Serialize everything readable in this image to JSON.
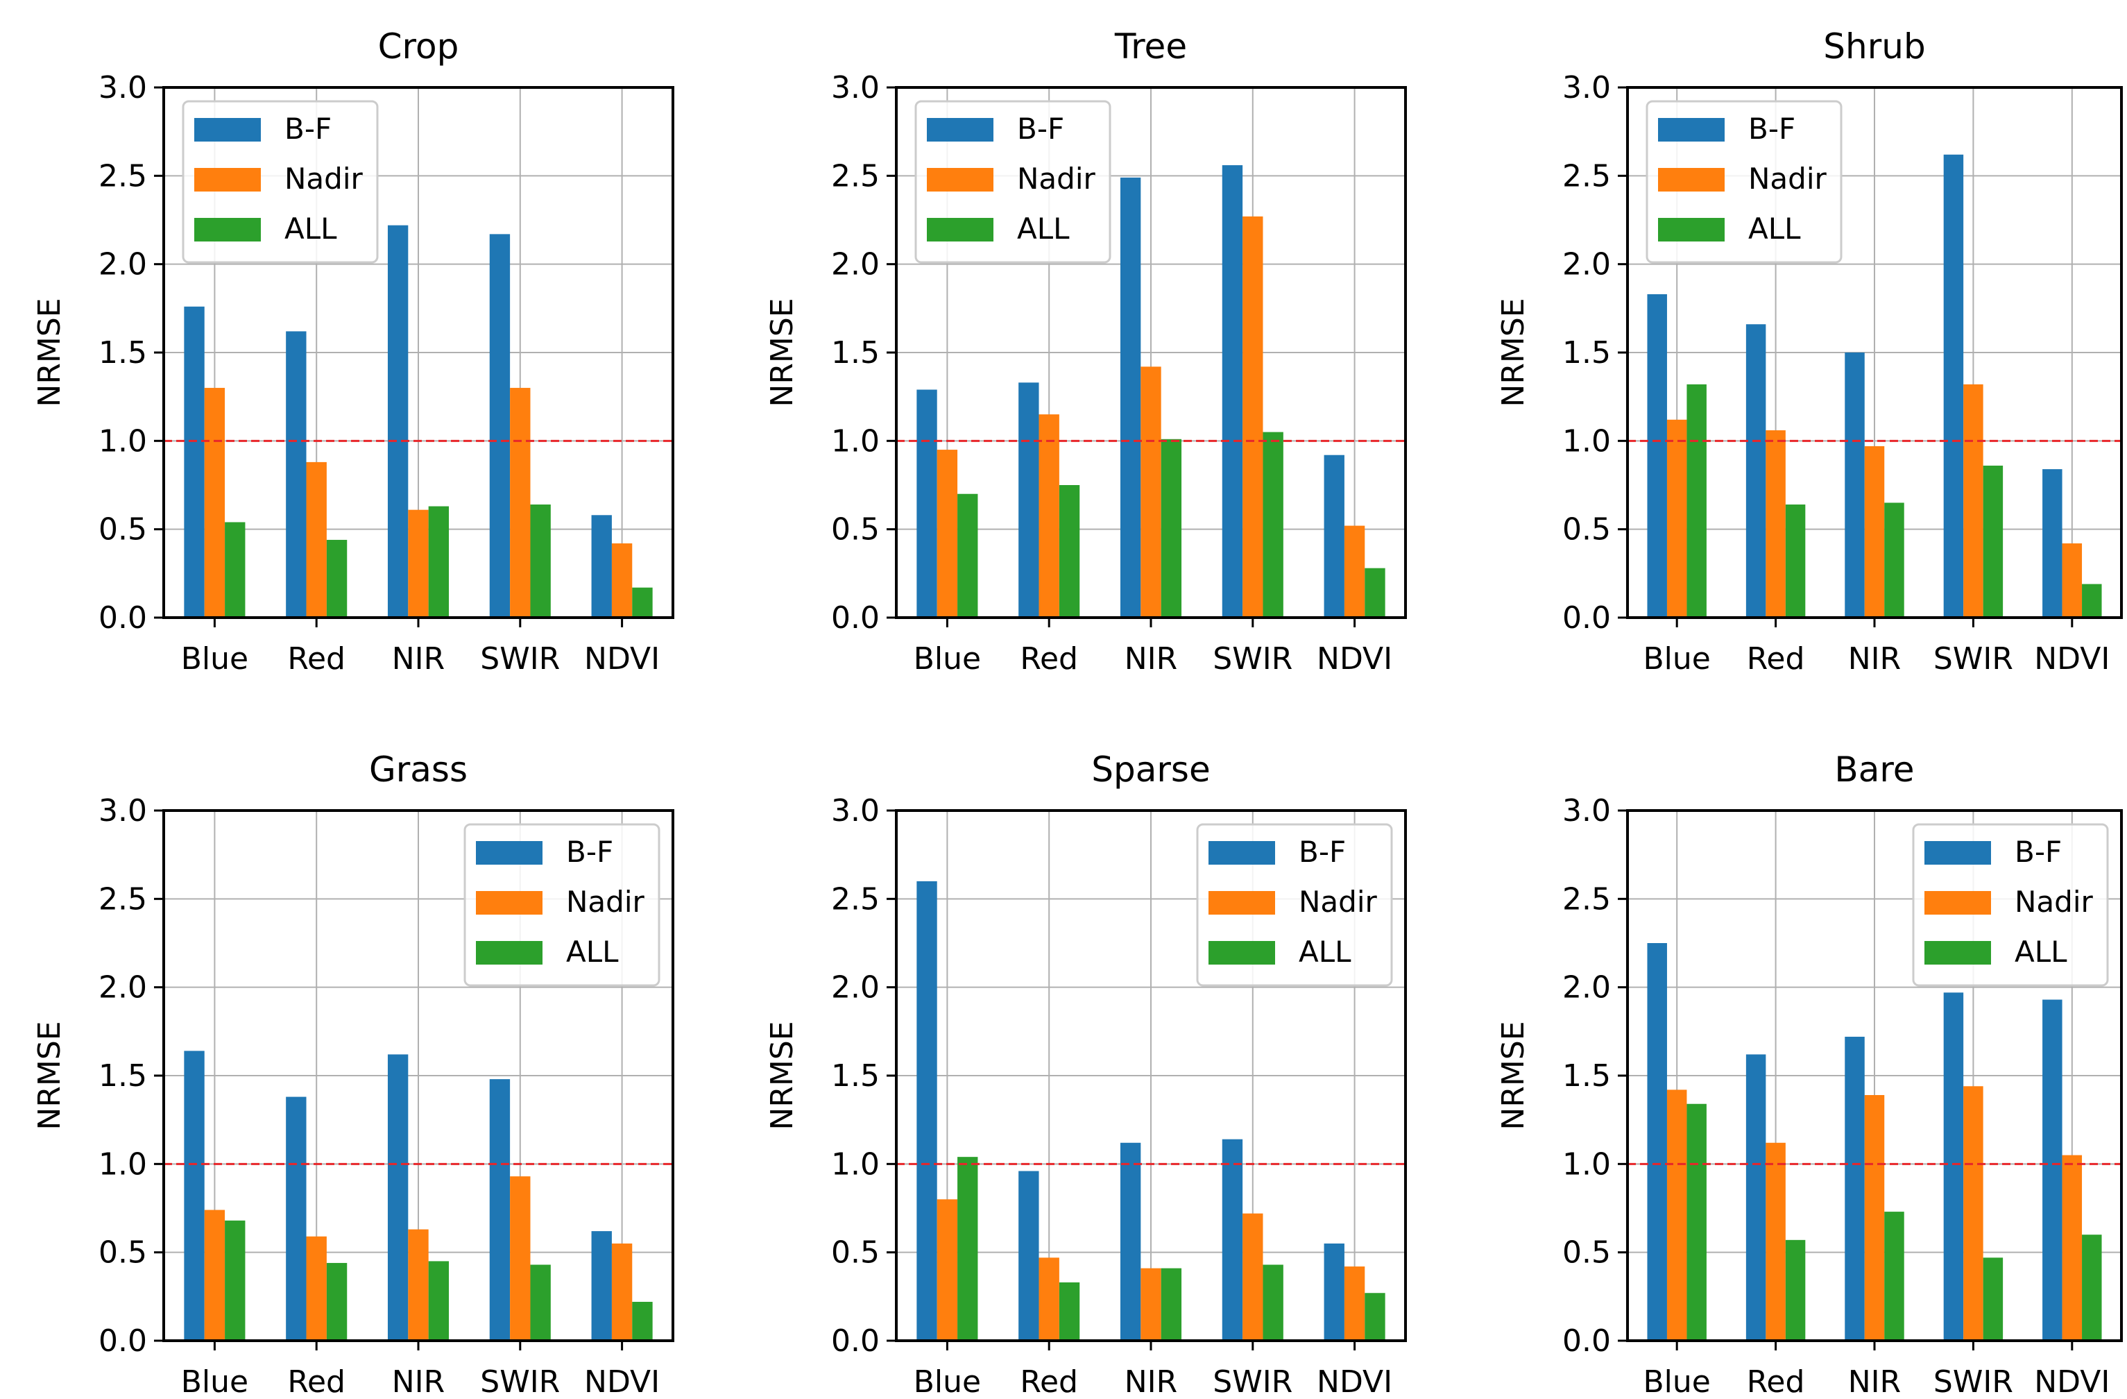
{
  "figure": {
    "colors": {
      "B-F": "#1f77b4",
      "Nadir": "#ff7f0e",
      "ALL": "#2ca02c",
      "reference_line": "#e8262a"
    }
  },
  "chart_data": [
    {
      "type": "bar",
      "title": "Crop",
      "xlabel": "",
      "ylabel": "NRMSE",
      "categories": [
        "Blue",
        "Red",
        "NIR",
        "SWIR",
        "NDVI"
      ],
      "ylim": [
        0,
        3.0
      ],
      "yticks": [
        "0.0",
        "0.5",
        "1.0",
        "1.5",
        "2.0",
        "2.5",
        "3.0"
      ],
      "grid": true,
      "reference_line": 1.0,
      "legend_loc": "upper-left",
      "series": [
        {
          "name": "B-F",
          "values": [
            1.76,
            1.62,
            2.22,
            2.17,
            0.58
          ]
        },
        {
          "name": "Nadir",
          "values": [
            1.3,
            0.88,
            0.61,
            1.3,
            0.42
          ]
        },
        {
          "name": "ALL",
          "values": [
            0.54,
            0.44,
            0.63,
            0.64,
            0.17
          ]
        }
      ]
    },
    {
      "type": "bar",
      "title": "Tree",
      "xlabel": "",
      "ylabel": "NRMSE",
      "categories": [
        "Blue",
        "Red",
        "NIR",
        "SWIR",
        "NDVI"
      ],
      "ylim": [
        0,
        3.0
      ],
      "yticks": [
        "0.0",
        "0.5",
        "1.0",
        "1.5",
        "2.0",
        "2.5",
        "3.0"
      ],
      "grid": true,
      "reference_line": 1.0,
      "legend_loc": "upper-left",
      "series": [
        {
          "name": "B-F",
          "values": [
            1.29,
            1.33,
            2.49,
            2.56,
            0.92
          ]
        },
        {
          "name": "Nadir",
          "values": [
            0.95,
            1.15,
            1.42,
            2.27,
            0.52
          ]
        },
        {
          "name": "ALL",
          "values": [
            0.7,
            0.75,
            1.01,
            1.05,
            0.28
          ]
        }
      ]
    },
    {
      "type": "bar",
      "title": "Shrub",
      "xlabel": "",
      "ylabel": "NRMSE",
      "categories": [
        "Blue",
        "Red",
        "NIR",
        "SWIR",
        "NDVI"
      ],
      "ylim": [
        0,
        3.0
      ],
      "yticks": [
        "0.0",
        "0.5",
        "1.0",
        "1.5",
        "2.0",
        "2.5",
        "3.0"
      ],
      "grid": true,
      "reference_line": 1.0,
      "legend_loc": "upper-left",
      "series": [
        {
          "name": "B-F",
          "values": [
            1.83,
            1.66,
            1.5,
            2.62,
            0.84
          ]
        },
        {
          "name": "Nadir",
          "values": [
            1.12,
            1.06,
            0.97,
            1.32,
            0.42
          ]
        },
        {
          "name": "ALL",
          "values": [
            1.32,
            0.64,
            0.65,
            0.86,
            0.19
          ]
        }
      ]
    },
    {
      "type": "bar",
      "title": "Grass",
      "xlabel": "",
      "ylabel": "NRMSE",
      "categories": [
        "Blue",
        "Red",
        "NIR",
        "SWIR",
        "NDVI"
      ],
      "ylim": [
        0,
        3.0
      ],
      "yticks": [
        "0.0",
        "0.5",
        "1.0",
        "1.5",
        "2.0",
        "2.5",
        "3.0"
      ],
      "grid": true,
      "reference_line": 1.0,
      "legend_loc": "upper-right",
      "series": [
        {
          "name": "B-F",
          "values": [
            1.64,
            1.38,
            1.62,
            1.48,
            0.62
          ]
        },
        {
          "name": "Nadir",
          "values": [
            0.74,
            0.59,
            0.63,
            0.93,
            0.55
          ]
        },
        {
          "name": "ALL",
          "values": [
            0.68,
            0.44,
            0.45,
            0.43,
            0.22
          ]
        }
      ]
    },
    {
      "type": "bar",
      "title": "Sparse",
      "xlabel": "",
      "ylabel": "NRMSE",
      "categories": [
        "Blue",
        "Red",
        "NIR",
        "SWIR",
        "NDVI"
      ],
      "ylim": [
        0,
        3.0
      ],
      "yticks": [
        "0.0",
        "0.5",
        "1.0",
        "1.5",
        "2.0",
        "2.5",
        "3.0"
      ],
      "grid": true,
      "reference_line": 1.0,
      "legend_loc": "upper-right",
      "series": [
        {
          "name": "B-F",
          "values": [
            2.6,
            0.96,
            1.12,
            1.14,
            0.55
          ]
        },
        {
          "name": "Nadir",
          "values": [
            0.8,
            0.47,
            0.41,
            0.72,
            0.42
          ]
        },
        {
          "name": "ALL",
          "values": [
            1.04,
            0.33,
            0.41,
            0.43,
            0.27
          ]
        }
      ]
    },
    {
      "type": "bar",
      "title": "Bare",
      "xlabel": "",
      "ylabel": "NRMSE",
      "categories": [
        "Blue",
        "Red",
        "NIR",
        "SWIR",
        "NDVI"
      ],
      "ylim": [
        0,
        3.0
      ],
      "yticks": [
        "0.0",
        "0.5",
        "1.0",
        "1.5",
        "2.0",
        "2.5",
        "3.0"
      ],
      "grid": true,
      "reference_line": 1.0,
      "legend_loc": "upper-right",
      "series": [
        {
          "name": "B-F",
          "values": [
            2.25,
            1.62,
            1.72,
            1.97,
            1.93
          ]
        },
        {
          "name": "Nadir",
          "values": [
            1.42,
            1.12,
            1.39,
            1.44,
            1.05
          ]
        },
        {
          "name": "ALL",
          "values": [
            1.34,
            0.57,
            0.73,
            0.47,
            0.6
          ]
        }
      ]
    }
  ]
}
